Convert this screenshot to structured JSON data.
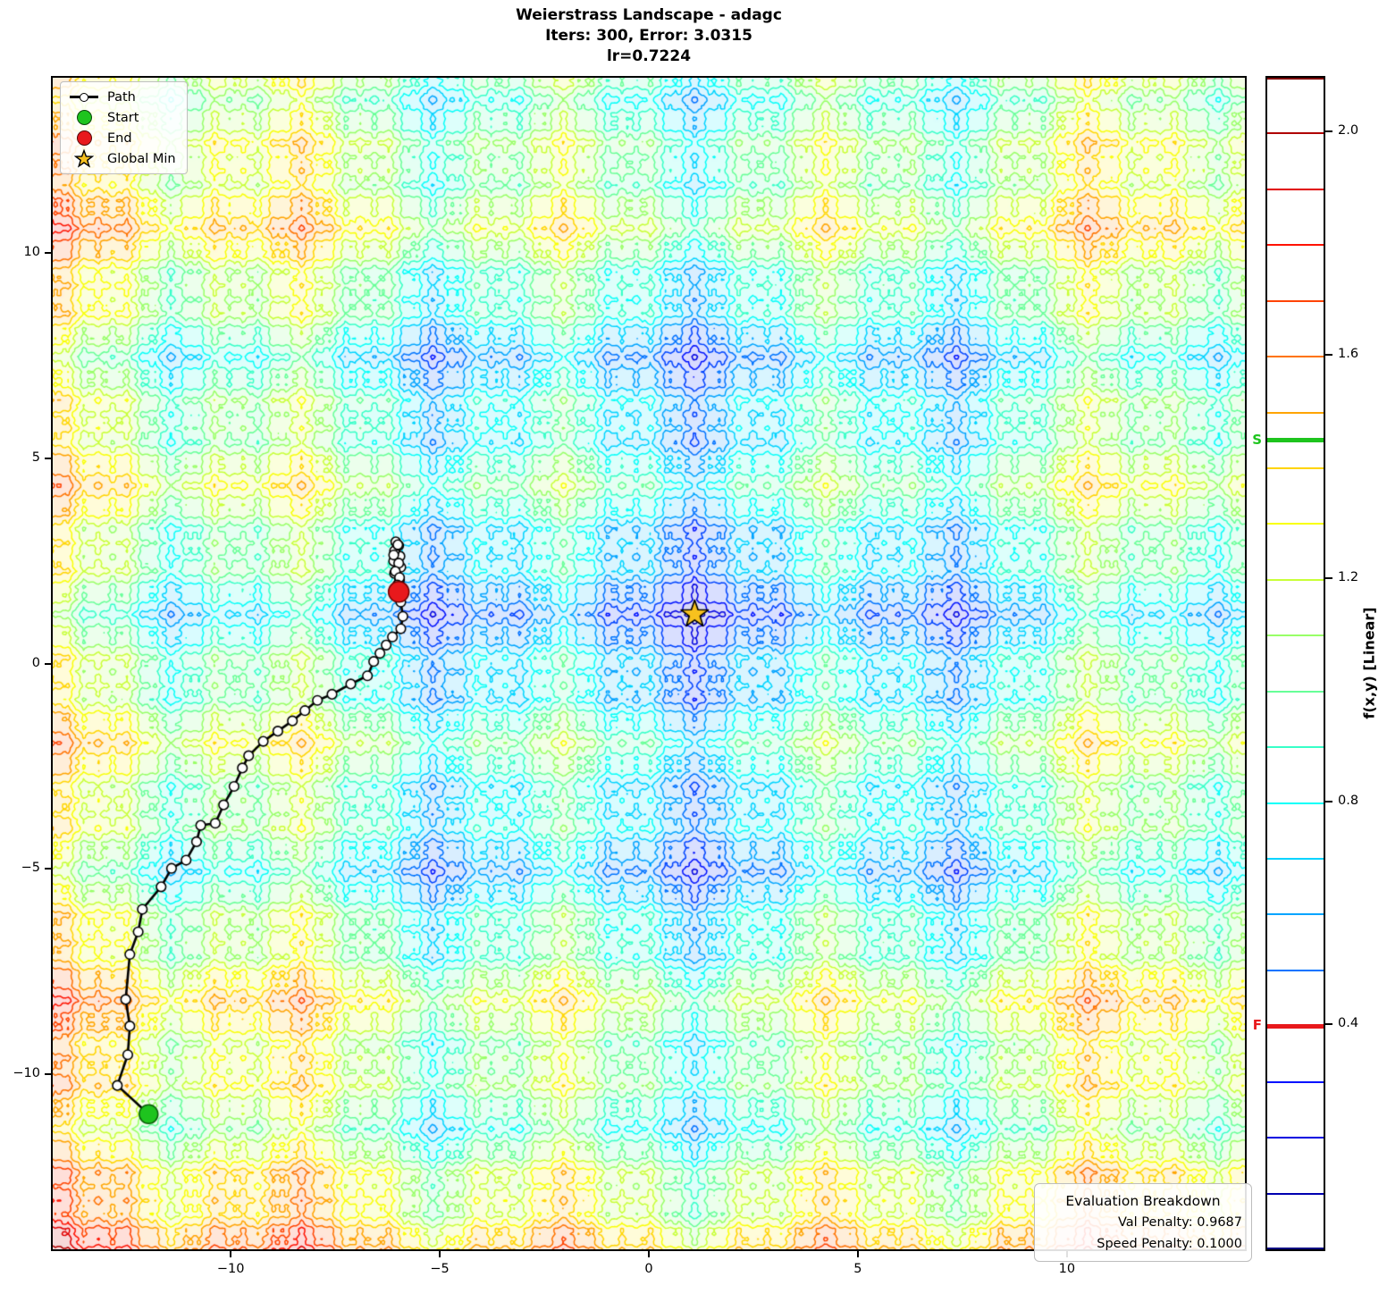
{
  "title": {
    "line1": "Weierstrass Landscape - adagc",
    "line2": "Iters: 300, Error: 3.0315",
    "line3": "lr=0.7224"
  },
  "legend": {
    "items": [
      {
        "label": "Path"
      },
      {
        "label": "Start"
      },
      {
        "label": "End"
      },
      {
        "label": "Global Min"
      }
    ]
  },
  "eval_box": {
    "title": "Evaluation Breakdown",
    "line1": "Val Penalty: 0.9687",
    "line2": "Speed Penalty: 0.1000"
  },
  "axes": {
    "x_ticks": [
      {
        "v": -10,
        "label": "−10"
      },
      {
        "v": -5,
        "label": "−5"
      },
      {
        "v": 0,
        "label": "0"
      },
      {
        "v": 5,
        "label": "5"
      },
      {
        "v": 10,
        "label": "10"
      }
    ],
    "y_ticks": [
      {
        "v": 10,
        "label": "10"
      },
      {
        "v": 5,
        "label": "5"
      },
      {
        "v": 0,
        "label": "0"
      },
      {
        "v": -5,
        "label": "−5"
      },
      {
        "v": -10,
        "label": "−10"
      }
    ]
  },
  "colorbar": {
    "label": "f(x,y) [Linear]",
    "vmin": 0.0,
    "vmax": 2.1,
    "level_step": 0.1,
    "tick_values": [
      0.4,
      0.8,
      1.2,
      1.6,
      2.0
    ],
    "tick_labels": [
      "0.4",
      "0.8",
      "1.2",
      "1.6",
      "2.0"
    ],
    "start_marker": {
      "label": "S",
      "value": 1.45,
      "color": "#1ec41e"
    },
    "final_marker": {
      "label": "F",
      "value": 0.4,
      "color": "#e8191c"
    }
  },
  "colors": {
    "start": "#1ec41e",
    "end": "#e8191c",
    "end_edge": "#6b0000",
    "star": "#f7c11e",
    "path_line": "#000000",
    "path_marker_fill": "#ffffff"
  },
  "chart_data": {
    "type": "contour",
    "title": "Weierstrass Landscape - adagc",
    "subtitle": "Iters: 300, Error: 3.0315, lr=0.7224",
    "colormap": "jet",
    "xlim": [
      -14.3,
      14.3
    ],
    "ylim": [
      -14.3,
      14.3
    ],
    "levels_min": 0.1,
    "levels_max": 2.0,
    "level_step": 0.1,
    "function": "f(x,y) = ww*(W(x-cx)+W(y-cy)) + rw*(dist/rs)^rp, W = normalized Weierstrass sum a^n cos(b^n t)",
    "params": {
      "a": 0.5,
      "b": 3,
      "terms": 4,
      "center": [
        1.1,
        1.2
      ],
      "weier_weight": 0.62,
      "radial_weight": 1.05,
      "radial_scale": 21.9,
      "radial_power": 1.5,
      "clip": [
        0.003,
        2.097
      ]
    },
    "start": [
      -12.0,
      -11.0
    ],
    "end": [
      -6.0,
      1.75
    ],
    "global_min": [
      1.1,
      1.2
    ],
    "path": [
      [
        -12.0,
        -11.0
      ],
      [
        -12.75,
        -10.3
      ],
      [
        -12.5,
        -9.55
      ],
      [
        -12.45,
        -8.85
      ],
      [
        -12.55,
        -8.2
      ],
      [
        -12.45,
        -7.1
      ],
      [
        -12.25,
        -6.55
      ],
      [
        -12.15,
        -6.0
      ],
      [
        -11.7,
        -5.45
      ],
      [
        -11.45,
        -5.0
      ],
      [
        -11.1,
        -4.8
      ],
      [
        -10.85,
        -4.35
      ],
      [
        -10.75,
        -3.95
      ],
      [
        -10.4,
        -3.9
      ],
      [
        -10.2,
        -3.45
      ],
      [
        -9.95,
        -3.0
      ],
      [
        -9.75,
        -2.55
      ],
      [
        -9.6,
        -2.25
      ],
      [
        -9.25,
        -1.9
      ],
      [
        -8.9,
        -1.65
      ],
      [
        -8.55,
        -1.4
      ],
      [
        -8.25,
        -1.15
      ],
      [
        -7.95,
        -0.9
      ],
      [
        -7.6,
        -0.75
      ],
      [
        -7.15,
        -0.5
      ],
      [
        -6.75,
        -0.3
      ],
      [
        -6.6,
        0.05
      ],
      [
        -6.45,
        0.25
      ],
      [
        -6.3,
        0.45
      ],
      [
        -6.15,
        0.65
      ],
      [
        -5.95,
        0.85
      ],
      [
        -5.9,
        1.15
      ],
      [
        -5.95,
        1.5
      ],
      [
        -6.05,
        1.85
      ],
      [
        -5.98,
        2.05
      ],
      [
        -6.1,
        2.2
      ],
      [
        -5.95,
        2.35
      ],
      [
        -6.12,
        2.5
      ],
      [
        -5.97,
        2.62
      ],
      [
        -6.1,
        2.75
      ],
      [
        -6.0,
        2.88
      ],
      [
        -6.07,
        2.97
      ],
      [
        -6.02,
        2.9
      ],
      [
        -6.12,
        2.65
      ],
      [
        -6.0,
        2.45
      ],
      [
        -6.08,
        2.25
      ],
      [
        -5.98,
        2.1
      ],
      [
        -6.03,
        1.92
      ],
      [
        -6.0,
        1.75
      ]
    ]
  }
}
